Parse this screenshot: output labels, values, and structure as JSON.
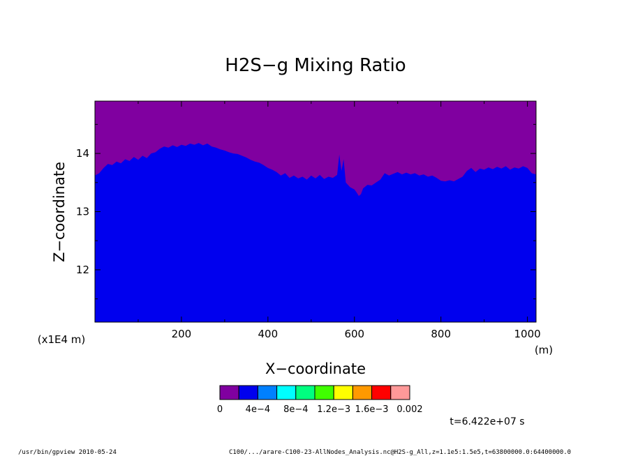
{
  "chart_data": {
    "type": "area",
    "title": "H2S−g Mixing Ratio",
    "xlabel": "X−coordinate",
    "ylabel": "Z−coordinate",
    "x_unit": "(m)",
    "y_unit": "(x1E4 m)",
    "xlim": [
      0,
      1020
    ],
    "ylim": [
      11.1,
      14.9
    ],
    "xticks": [
      "200",
      "400",
      "600",
      "800",
      "1000"
    ],
    "xtick_values": [
      200,
      400,
      600,
      800,
      1000
    ],
    "yticks": [
      "12",
      "13",
      "14"
    ],
    "ytick_values": [
      12,
      13,
      14
    ],
    "upper_color": "#8000a0",
    "lower_color": "#0000ee",
    "boundary": {
      "x": [
        0,
        10,
        20,
        30,
        40,
        50,
        60,
        70,
        80,
        90,
        100,
        110,
        120,
        130,
        140,
        150,
        160,
        170,
        180,
        190,
        200,
        210,
        220,
        230,
        240,
        250,
        260,
        270,
        280,
        290,
        300,
        310,
        320,
        330,
        340,
        350,
        360,
        370,
        380,
        390,
        400,
        410,
        420,
        430,
        440,
        450,
        460,
        470,
        480,
        490,
        500,
        510,
        520,
        530,
        540,
        550,
        560,
        565,
        570,
        575,
        580,
        590,
        600,
        605,
        610,
        615,
        620,
        630,
        640,
        650,
        660,
        670,
        680,
        690,
        700,
        710,
        720,
        730,
        740,
        750,
        760,
        770,
        780,
        790,
        800,
        810,
        820,
        830,
        840,
        850,
        860,
        870,
        880,
        890,
        900,
        910,
        920,
        930,
        940,
        950,
        960,
        970,
        980,
        990,
        1000,
        1010,
        1020
      ],
      "y": [
        13.62,
        13.66,
        13.75,
        13.82,
        13.8,
        13.86,
        13.83,
        13.9,
        13.87,
        13.94,
        13.89,
        13.96,
        13.92,
        14.0,
        14.02,
        14.08,
        14.12,
        14.1,
        14.14,
        14.11,
        14.15,
        14.13,
        14.17,
        14.15,
        14.18,
        14.14,
        14.17,
        14.12,
        14.1,
        14.07,
        14.05,
        14.02,
        14.0,
        13.99,
        13.96,
        13.93,
        13.89,
        13.86,
        13.84,
        13.8,
        13.75,
        13.72,
        13.68,
        13.62,
        13.66,
        13.58,
        13.62,
        13.57,
        13.6,
        13.55,
        13.62,
        13.57,
        13.63,
        13.56,
        13.6,
        13.58,
        13.63,
        13.98,
        13.7,
        13.9,
        13.5,
        13.42,
        13.38,
        13.33,
        13.27,
        13.3,
        13.4,
        13.46,
        13.45,
        13.5,
        13.55,
        13.66,
        13.62,
        13.65,
        13.68,
        13.64,
        13.67,
        13.64,
        13.66,
        13.62,
        13.64,
        13.6,
        13.62,
        13.58,
        13.53,
        13.52,
        13.54,
        13.52,
        13.56,
        13.6,
        13.7,
        13.75,
        13.68,
        13.74,
        13.72,
        13.76,
        13.73,
        13.77,
        13.74,
        13.78,
        13.72,
        13.76,
        13.74,
        13.78,
        13.75,
        13.66,
        13.64
      ]
    },
    "colorbar": {
      "colors": [
        "#8000a0",
        "#0000ee",
        "#0080ff",
        "#00ffff",
        "#00ff80",
        "#40ff00",
        "#ffff00",
        "#ff9900",
        "#ff0000",
        "#ff9999"
      ],
      "labels": [
        "0",
        "4e−4",
        "8e−4",
        "1.2e−3",
        "1.6e−3",
        "0.002"
      ]
    },
    "time_label": "t=6.422e+07 s"
  },
  "footer": {
    "left": "/usr/bin/gpview   2010-05-24",
    "right": "C100/.../arare-C100-23-AllNodes_Analysis.nc@H2S-g_All,z=1.1e5:1.5e5,t=63800000.0:64400000.0"
  }
}
